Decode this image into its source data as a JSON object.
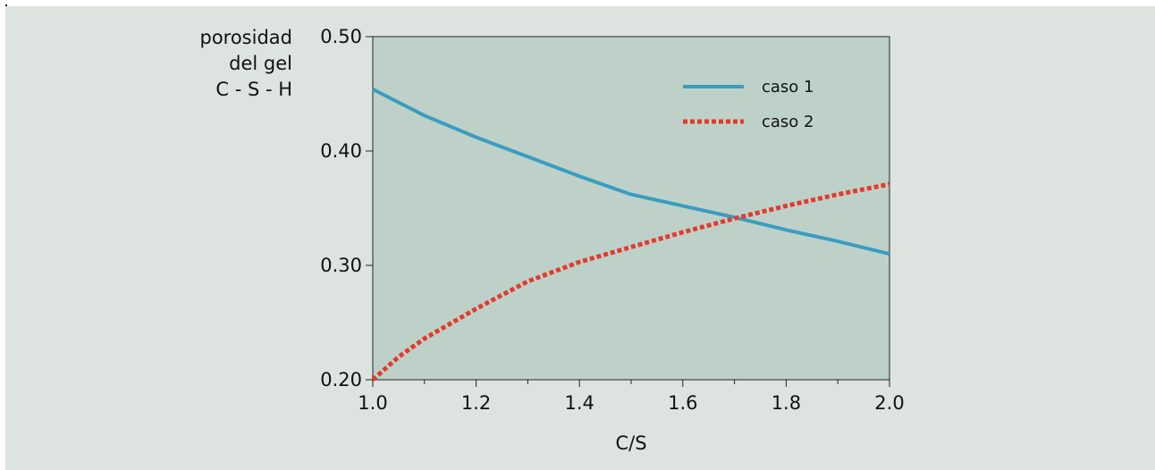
{
  "chart_data": {
    "type": "line",
    "ylabel_lines": [
      "porosidad",
      "del gel",
      "C - S - H"
    ],
    "xlabel": "C/S",
    "xlim": [
      1.0,
      2.0
    ],
    "ylim": [
      0.2,
      0.5
    ],
    "x_ticks": [
      "1.0",
      "1.2",
      "1.4",
      "1.6",
      "1.8",
      "2.0"
    ],
    "y_ticks": [
      "0.20",
      "0.30",
      "0.40",
      "0.50"
    ],
    "grid": false,
    "legend_position": "top-right",
    "series": [
      {
        "name": "caso 1",
        "style": "solid",
        "color": "#3a9dc0",
        "x": [
          1.0,
          1.1,
          1.2,
          1.3,
          1.4,
          1.5,
          1.6,
          1.7,
          1.8,
          1.9,
          2.0
        ],
        "y": [
          0.454,
          0.431,
          0.412,
          0.395,
          0.378,
          0.362,
          0.352,
          0.342,
          0.331,
          0.321,
          0.31
        ]
      },
      {
        "name": "caso 2",
        "style": "dotted",
        "color": "#e23b2e",
        "x": [
          1.0,
          1.05,
          1.1,
          1.2,
          1.3,
          1.4,
          1.5,
          1.6,
          1.7,
          1.8,
          1.9,
          2.0
        ],
        "y": [
          0.2,
          0.22,
          0.236,
          0.262,
          0.286,
          0.303,
          0.316,
          0.329,
          0.341,
          0.352,
          0.362,
          0.371
        ]
      }
    ],
    "plot_bg_color": "#bed1c9",
    "panel_bg_color": "#dde4df"
  }
}
